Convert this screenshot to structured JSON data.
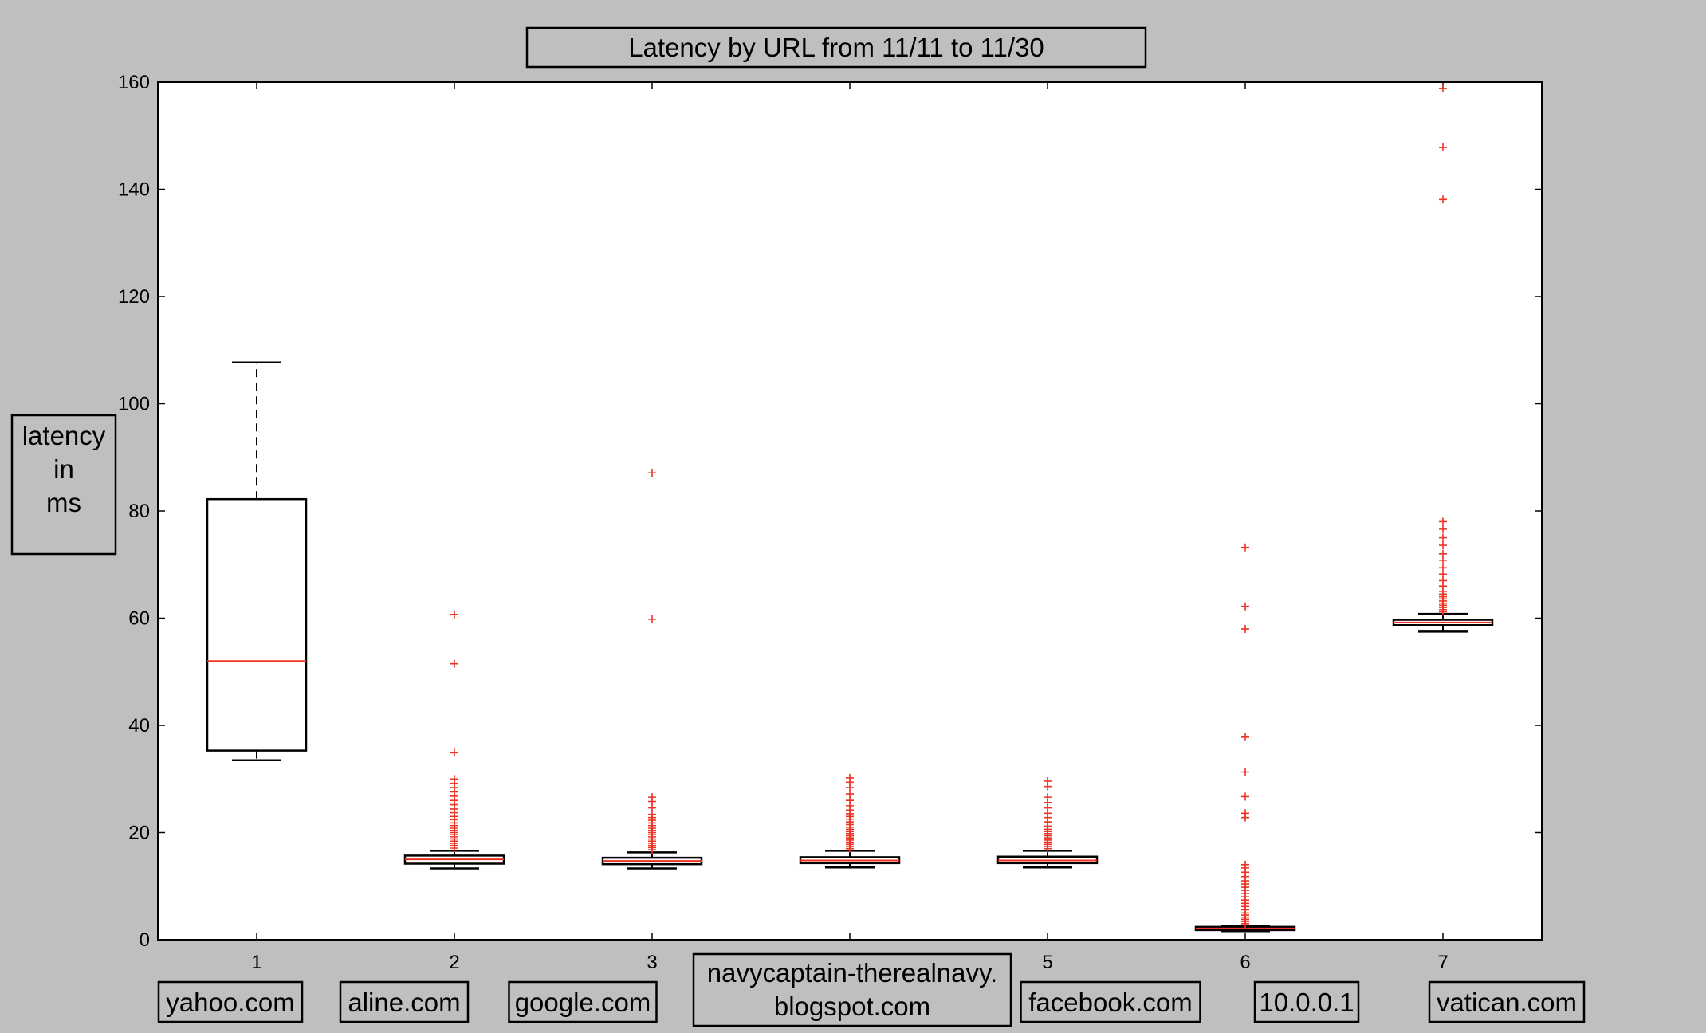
{
  "chart_data": {
    "type": "box",
    "title": "Latency by URL from 11/11 to 11/30",
    "ylabel": [
      "latency",
      "in",
      "ms"
    ],
    "xlabel": "",
    "ylim": [
      0,
      160
    ],
    "xlim": [
      0.5,
      7.5
    ],
    "grid": false,
    "yticks": [
      0,
      20,
      40,
      60,
      80,
      100,
      120,
      140,
      160
    ],
    "xticks": [
      1,
      2,
      3,
      4,
      5,
      6,
      7
    ],
    "url_labels": [
      {
        "x": 1,
        "lines": [
          "yahoo.com"
        ]
      },
      {
        "x": 2,
        "lines": [
          "aline.com"
        ]
      },
      {
        "x": 3,
        "lines": [
          "google.com"
        ]
      },
      {
        "x": 4,
        "lines": [
          "navycaptain-therealnavy.",
          "blogspot.com"
        ]
      },
      {
        "x": 5,
        "lines": [
          "facebook.com"
        ]
      },
      {
        "x": 6,
        "lines": [
          "10.0.0.1"
        ]
      },
      {
        "x": 7,
        "lines": [
          "vatican.com"
        ]
      }
    ],
    "boxes": [
      {
        "x": 1,
        "whisker_low": 33.5,
        "q1": 35.3,
        "median": 52,
        "q3": 82.2,
        "whisker_high": 107.7,
        "outliers": []
      },
      {
        "x": 2,
        "whisker_low": 13.3,
        "q1": 14.2,
        "median": 15.0,
        "q3": 15.7,
        "whisker_high": 16.6,
        "outliers": [
          17.1,
          17.6,
          18.0,
          18.4,
          18.8,
          19.2,
          19.6,
          20.0,
          20.4,
          20.8,
          21.3,
          21.8,
          22.4,
          23.0,
          23.7,
          24.4,
          25.2,
          26.0,
          26.8,
          27.6,
          28.4,
          29.2,
          30.0,
          34.9,
          51.5,
          60.7
        ]
      },
      {
        "x": 3,
        "whisker_low": 13.3,
        "q1": 14.1,
        "median": 14.7,
        "q3": 15.3,
        "whisker_high": 16.3,
        "outliers": [
          16.8,
          17.2,
          17.6,
          18.0,
          18.4,
          18.8,
          19.2,
          19.6,
          20.0,
          20.4,
          20.8,
          21.3,
          21.8,
          22.3,
          22.8,
          23.4,
          24.6,
          25.8,
          26.6,
          59.8,
          87.1
        ]
      },
      {
        "x": 4,
        "whisker_low": 13.5,
        "q1": 14.3,
        "median": 14.8,
        "q3": 15.4,
        "whisker_high": 16.6,
        "outliers": [
          17.0,
          17.4,
          17.8,
          18.2,
          18.6,
          19.0,
          19.4,
          19.8,
          20.2,
          20.6,
          21.0,
          21.5,
          22.0,
          22.5,
          23.0,
          23.5,
          24.2,
          25.0,
          26.0,
          27.2,
          28.4,
          29.4,
          30.2
        ]
      },
      {
        "x": 5,
        "whisker_low": 13.5,
        "q1": 14.3,
        "median": 14.8,
        "q3": 15.5,
        "whisker_high": 16.6,
        "outliers": [
          17.0,
          17.4,
          17.8,
          18.2,
          18.6,
          19.0,
          19.4,
          19.8,
          20.2,
          20.6,
          21.2,
          22.0,
          22.8,
          23.6,
          24.6,
          25.6,
          26.6,
          28.6,
          29.6
        ]
      },
      {
        "x": 6,
        "whisker_low": 1.6,
        "q1": 1.8,
        "median": 2.1,
        "q3": 2.4,
        "whisker_high": 2.6,
        "outliers": [
          3.0,
          3.4,
          3.8,
          4.2,
          4.6,
          5.0,
          5.6,
          6.2,
          6.8,
          7.4,
          8.0,
          8.6,
          9.2,
          9.8,
          10.4,
          11.0,
          11.8,
          12.6,
          13.4,
          14.0,
          22.8,
          23.6,
          26.7,
          31.3,
          37.8,
          58.0,
          62.2,
          73.2
        ]
      },
      {
        "x": 7,
        "whisker_low": 57.5,
        "q1": 58.7,
        "median": 59.2,
        "q3": 59.7,
        "whisker_high": 60.8,
        "outliers": [
          61.2,
          61.6,
          62.0,
          62.4,
          62.8,
          63.2,
          63.6,
          64.0,
          64.5,
          65.0,
          66.0,
          67.0,
          68.2,
          69.4,
          70.8,
          72.0,
          73.6,
          75.0,
          76.6,
          78.0,
          138.1,
          147.8,
          158.8
        ]
      }
    ]
  }
}
